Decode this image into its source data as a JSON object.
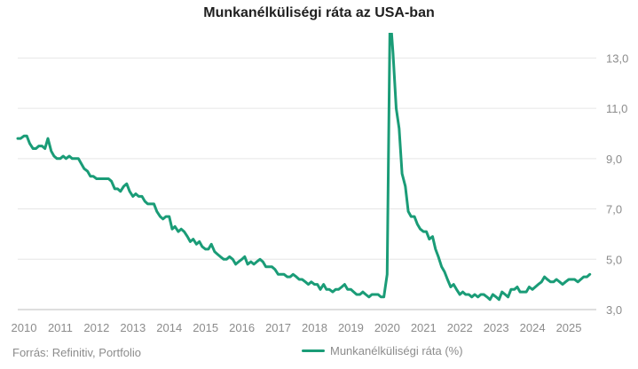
{
  "chart_data": {
    "type": "line",
    "title": "Munkanélküliségi ráta az USA-ban",
    "xlabel": "",
    "ylabel": "",
    "ylim": [
      3.0,
      14.0
    ],
    "xlim": [
      2010.0,
      2025.83
    ],
    "yticks": [
      "3,0",
      "5,0",
      "7,0",
      "9,0",
      "11,0",
      "13,0"
    ],
    "ytick_values": [
      3,
      5,
      7,
      9,
      11,
      13
    ],
    "xticks": [
      "2010",
      "2011",
      "2012",
      "2013",
      "2014",
      "2015",
      "2016",
      "2017",
      "2018",
      "2019",
      "2020",
      "2021",
      "2022",
      "2023",
      "2024",
      "2025"
    ],
    "grid": "horizontal",
    "y_axis_side": "right",
    "legend_position": "bottom-center",
    "series": [
      {
        "name": "Munkanélküliségi ráta (%)",
        "color": "#1a9c77",
        "points": [
          [
            2010.0,
            9.8
          ],
          [
            2010.08,
            9.8
          ],
          [
            2010.17,
            9.9
          ],
          [
            2010.25,
            9.9
          ],
          [
            2010.33,
            9.6
          ],
          [
            2010.42,
            9.4
          ],
          [
            2010.5,
            9.4
          ],
          [
            2010.58,
            9.5
          ],
          [
            2010.67,
            9.5
          ],
          [
            2010.75,
            9.4
          ],
          [
            2010.83,
            9.8
          ],
          [
            2010.92,
            9.3
          ],
          [
            2011.0,
            9.1
          ],
          [
            2011.08,
            9.0
          ],
          [
            2011.17,
            9.0
          ],
          [
            2011.25,
            9.1
          ],
          [
            2011.33,
            9.0
          ],
          [
            2011.42,
            9.1
          ],
          [
            2011.5,
            9.0
          ],
          [
            2011.58,
            9.0
          ],
          [
            2011.67,
            9.0
          ],
          [
            2011.75,
            8.8
          ],
          [
            2011.83,
            8.6
          ],
          [
            2011.92,
            8.5
          ],
          [
            2012.0,
            8.3
          ],
          [
            2012.08,
            8.3
          ],
          [
            2012.17,
            8.2
          ],
          [
            2012.25,
            8.2
          ],
          [
            2012.33,
            8.2
          ],
          [
            2012.42,
            8.2
          ],
          [
            2012.5,
            8.2
          ],
          [
            2012.58,
            8.1
          ],
          [
            2012.67,
            7.8
          ],
          [
            2012.75,
            7.8
          ],
          [
            2012.83,
            7.7
          ],
          [
            2012.92,
            7.9
          ],
          [
            2013.0,
            8.0
          ],
          [
            2013.08,
            7.7
          ],
          [
            2013.17,
            7.5
          ],
          [
            2013.25,
            7.6
          ],
          [
            2013.33,
            7.5
          ],
          [
            2013.42,
            7.5
          ],
          [
            2013.5,
            7.3
          ],
          [
            2013.58,
            7.2
          ],
          [
            2013.67,
            7.2
          ],
          [
            2013.75,
            7.2
          ],
          [
            2013.83,
            6.9
          ],
          [
            2013.92,
            6.7
          ],
          [
            2014.0,
            6.6
          ],
          [
            2014.08,
            6.7
          ],
          [
            2014.17,
            6.7
          ],
          [
            2014.25,
            6.2
          ],
          [
            2014.33,
            6.3
          ],
          [
            2014.42,
            6.1
          ],
          [
            2014.5,
            6.2
          ],
          [
            2014.58,
            6.1
          ],
          [
            2014.67,
            5.9
          ],
          [
            2014.75,
            5.7
          ],
          [
            2014.83,
            5.8
          ],
          [
            2014.92,
            5.6
          ],
          [
            2015.0,
            5.7
          ],
          [
            2015.08,
            5.5
          ],
          [
            2015.17,
            5.4
          ],
          [
            2015.25,
            5.4
          ],
          [
            2015.33,
            5.6
          ],
          [
            2015.42,
            5.3
          ],
          [
            2015.5,
            5.2
          ],
          [
            2015.58,
            5.1
          ],
          [
            2015.67,
            5.0
          ],
          [
            2015.75,
            5.0
          ],
          [
            2015.83,
            5.1
          ],
          [
            2015.92,
            5.0
          ],
          [
            2016.0,
            4.8
          ],
          [
            2016.08,
            4.9
          ],
          [
            2016.17,
            5.0
          ],
          [
            2016.25,
            5.1
          ],
          [
            2016.33,
            4.8
          ],
          [
            2016.42,
            4.9
          ],
          [
            2016.5,
            4.8
          ],
          [
            2016.58,
            4.9
          ],
          [
            2016.67,
            5.0
          ],
          [
            2016.75,
            4.9
          ],
          [
            2016.83,
            4.7
          ],
          [
            2016.92,
            4.7
          ],
          [
            2017.0,
            4.7
          ],
          [
            2017.08,
            4.6
          ],
          [
            2017.17,
            4.4
          ],
          [
            2017.25,
            4.4
          ],
          [
            2017.33,
            4.4
          ],
          [
            2017.42,
            4.3
          ],
          [
            2017.5,
            4.3
          ],
          [
            2017.58,
            4.4
          ],
          [
            2017.67,
            4.3
          ],
          [
            2017.75,
            4.2
          ],
          [
            2017.83,
            4.2
          ],
          [
            2017.92,
            4.1
          ],
          [
            2018.0,
            4.0
          ],
          [
            2018.08,
            4.1
          ],
          [
            2018.17,
            4.0
          ],
          [
            2018.25,
            4.0
          ],
          [
            2018.33,
            3.8
          ],
          [
            2018.42,
            4.0
          ],
          [
            2018.5,
            3.8
          ],
          [
            2018.58,
            3.8
          ],
          [
            2018.67,
            3.7
          ],
          [
            2018.75,
            3.8
          ],
          [
            2018.83,
            3.8
          ],
          [
            2018.92,
            3.9
          ],
          [
            2019.0,
            4.0
          ],
          [
            2019.08,
            3.8
          ],
          [
            2019.17,
            3.8
          ],
          [
            2019.25,
            3.7
          ],
          [
            2019.33,
            3.6
          ],
          [
            2019.42,
            3.6
          ],
          [
            2019.5,
            3.7
          ],
          [
            2019.58,
            3.6
          ],
          [
            2019.67,
            3.5
          ],
          [
            2019.75,
            3.6
          ],
          [
            2019.83,
            3.6
          ],
          [
            2019.92,
            3.6
          ],
          [
            2020.0,
            3.5
          ],
          [
            2020.08,
            3.5
          ],
          [
            2020.17,
            4.4
          ],
          [
            2020.25,
            14.8
          ],
          [
            2020.33,
            13.2
          ],
          [
            2020.42,
            11.0
          ],
          [
            2020.5,
            10.2
          ],
          [
            2020.58,
            8.4
          ],
          [
            2020.67,
            7.9
          ],
          [
            2020.75,
            6.9
          ],
          [
            2020.83,
            6.7
          ],
          [
            2020.92,
            6.7
          ],
          [
            2021.0,
            6.4
          ],
          [
            2021.08,
            6.2
          ],
          [
            2021.17,
            6.1
          ],
          [
            2021.25,
            6.1
          ],
          [
            2021.33,
            5.8
          ],
          [
            2021.42,
            5.9
          ],
          [
            2021.5,
            5.4
          ],
          [
            2021.58,
            5.1
          ],
          [
            2021.67,
            4.7
          ],
          [
            2021.75,
            4.5
          ],
          [
            2021.83,
            4.2
          ],
          [
            2021.92,
            3.9
          ],
          [
            2022.0,
            4.0
          ],
          [
            2022.08,
            3.8
          ],
          [
            2022.17,
            3.6
          ],
          [
            2022.25,
            3.7
          ],
          [
            2022.33,
            3.6
          ],
          [
            2022.42,
            3.6
          ],
          [
            2022.5,
            3.5
          ],
          [
            2022.58,
            3.6
          ],
          [
            2022.67,
            3.5
          ],
          [
            2022.75,
            3.6
          ],
          [
            2022.83,
            3.6
          ],
          [
            2022.92,
            3.5
          ],
          [
            2023.0,
            3.4
          ],
          [
            2023.08,
            3.6
          ],
          [
            2023.17,
            3.5
          ],
          [
            2023.25,
            3.4
          ],
          [
            2023.33,
            3.7
          ],
          [
            2023.42,
            3.6
          ],
          [
            2023.5,
            3.5
          ],
          [
            2023.58,
            3.8
          ],
          [
            2023.67,
            3.8
          ],
          [
            2023.75,
            3.9
          ],
          [
            2023.83,
            3.7
          ],
          [
            2023.92,
            3.7
          ],
          [
            2024.0,
            3.7
          ],
          [
            2024.08,
            3.9
          ],
          [
            2024.17,
            3.8
          ],
          [
            2024.25,
            3.9
          ],
          [
            2024.33,
            4.0
          ],
          [
            2024.42,
            4.1
          ],
          [
            2024.5,
            4.3
          ],
          [
            2024.58,
            4.2
          ],
          [
            2024.67,
            4.1
          ],
          [
            2024.75,
            4.1
          ],
          [
            2024.83,
            4.2
          ],
          [
            2024.92,
            4.1
          ],
          [
            2025.0,
            4.0
          ],
          [
            2025.08,
            4.1
          ],
          [
            2025.17,
            4.2
          ],
          [
            2025.25,
            4.2
          ],
          [
            2025.33,
            4.2
          ],
          [
            2025.42,
            4.1
          ],
          [
            2025.5,
            4.2
          ],
          [
            2025.58,
            4.3
          ],
          [
            2025.67,
            4.3
          ],
          [
            2025.75,
            4.4
          ]
        ]
      }
    ]
  },
  "source_text": "Forrás: Refinitiv, Portfolio"
}
